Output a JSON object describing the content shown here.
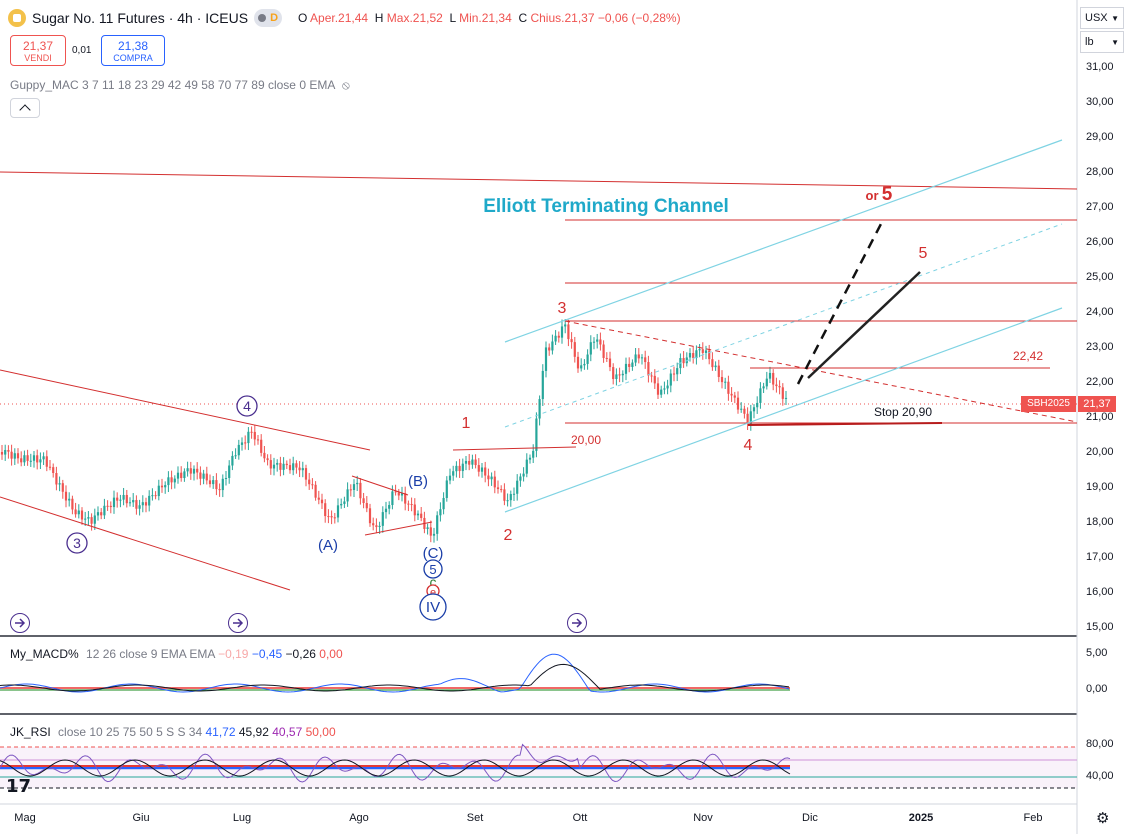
{
  "header": {
    "title": "Sugar No. 11 Futures · 4h · ICEUS",
    "ohlc": {
      "open_label": "O",
      "open": "Aper.21,44",
      "high_label": "H",
      "high": "Max.21,52",
      "low_label": "L",
      "low": "Min.21,34",
      "close_label": "C",
      "close": "Chius.21,37",
      "change": "−0,06 (−0,28%)"
    },
    "d_badge": "D"
  },
  "trade": {
    "sell_price": "21,37",
    "sell_label": "VENDI",
    "spread": "0,01",
    "buy_price": "21,38",
    "buy_label": "COMPRA"
  },
  "indicators": {
    "guppy": "Guppy_MAC 3 7 11 18 23 29 42 49 58 70 77 89 close 0 EMA",
    "macd_name": "My_MACD%",
    "macd_params": "12 26 close 9 EMA EMA",
    "macd_v1": "−0,19",
    "macd_v2": "−0,45",
    "macd_v3": "−0,26",
    "macd_v4": "0,00",
    "rsi_name": "JK_RSI",
    "rsi_params": "close 10 25 75 50 5 S S 34",
    "rsi_v1": "41,72",
    "rsi_v2": "45,92",
    "rsi_v3": "40,57",
    "rsi_v4": "50,00"
  },
  "scale": {
    "currency": "USX",
    "unit": "lb",
    "price_ticks": [
      "31,00",
      "30,00",
      "29,00",
      "28,00",
      "27,00",
      "26,00",
      "25,00",
      "24,00",
      "23,00",
      "22,00",
      "21,00",
      "20,00",
      "19,00",
      "18,00",
      "17,00",
      "16,00",
      "15,00"
    ],
    "macd_ticks": [
      "5,00",
      "0,00"
    ],
    "rsi_ticks": [
      "80,00",
      "40,00"
    ],
    "current_price": "21,37",
    "symbol_tag": "SBH2025"
  },
  "time_axis": [
    "Mag",
    "Giu",
    "Lug",
    "Ago",
    "Set",
    "Ott",
    "Nov",
    "Dic",
    "2025",
    "Feb"
  ],
  "annotations": {
    "channel_title": "Elliott Terminating Channel",
    "level_2242": "22,42",
    "level_2000": "20,00",
    "stop": "Stop 20,90",
    "or_text": "or",
    "wave_5_alt": "5",
    "wave_5": "5",
    "wave_1": "1",
    "wave_2": "2",
    "wave_3": "3",
    "wave_4": "4",
    "circ_3": "3",
    "circ_4": "4",
    "wave_A": "(A)",
    "wave_B": "(B)",
    "wave_C": "(C)",
    "circ_5": "5",
    "c_green": "c",
    "e_red": "e",
    "circ_IV": "IV"
  },
  "colors": {
    "up": "#26a69a",
    "down": "#ef5350",
    "trend": "#d32f2f",
    "channel": "#7fd3e3",
    "elliott_blue": "#1a3ea8",
    "purple": "#4a2f8f",
    "title_cyan": "#1fa9c9"
  },
  "chart_data": {
    "type": "candlestick",
    "price_axis": {
      "min": 15,
      "max": 31,
      "unit": "USX/lb"
    },
    "last_close": 21.37,
    "key_levels": [
      27.2,
      24.85,
      23.75,
      22.42,
      20.9,
      20.0
    ],
    "waves": [
      "3",
      "4",
      "(A)",
      "(B)",
      "(C)",
      "IV",
      "1",
      "2",
      "3",
      "4",
      "5"
    ]
  }
}
